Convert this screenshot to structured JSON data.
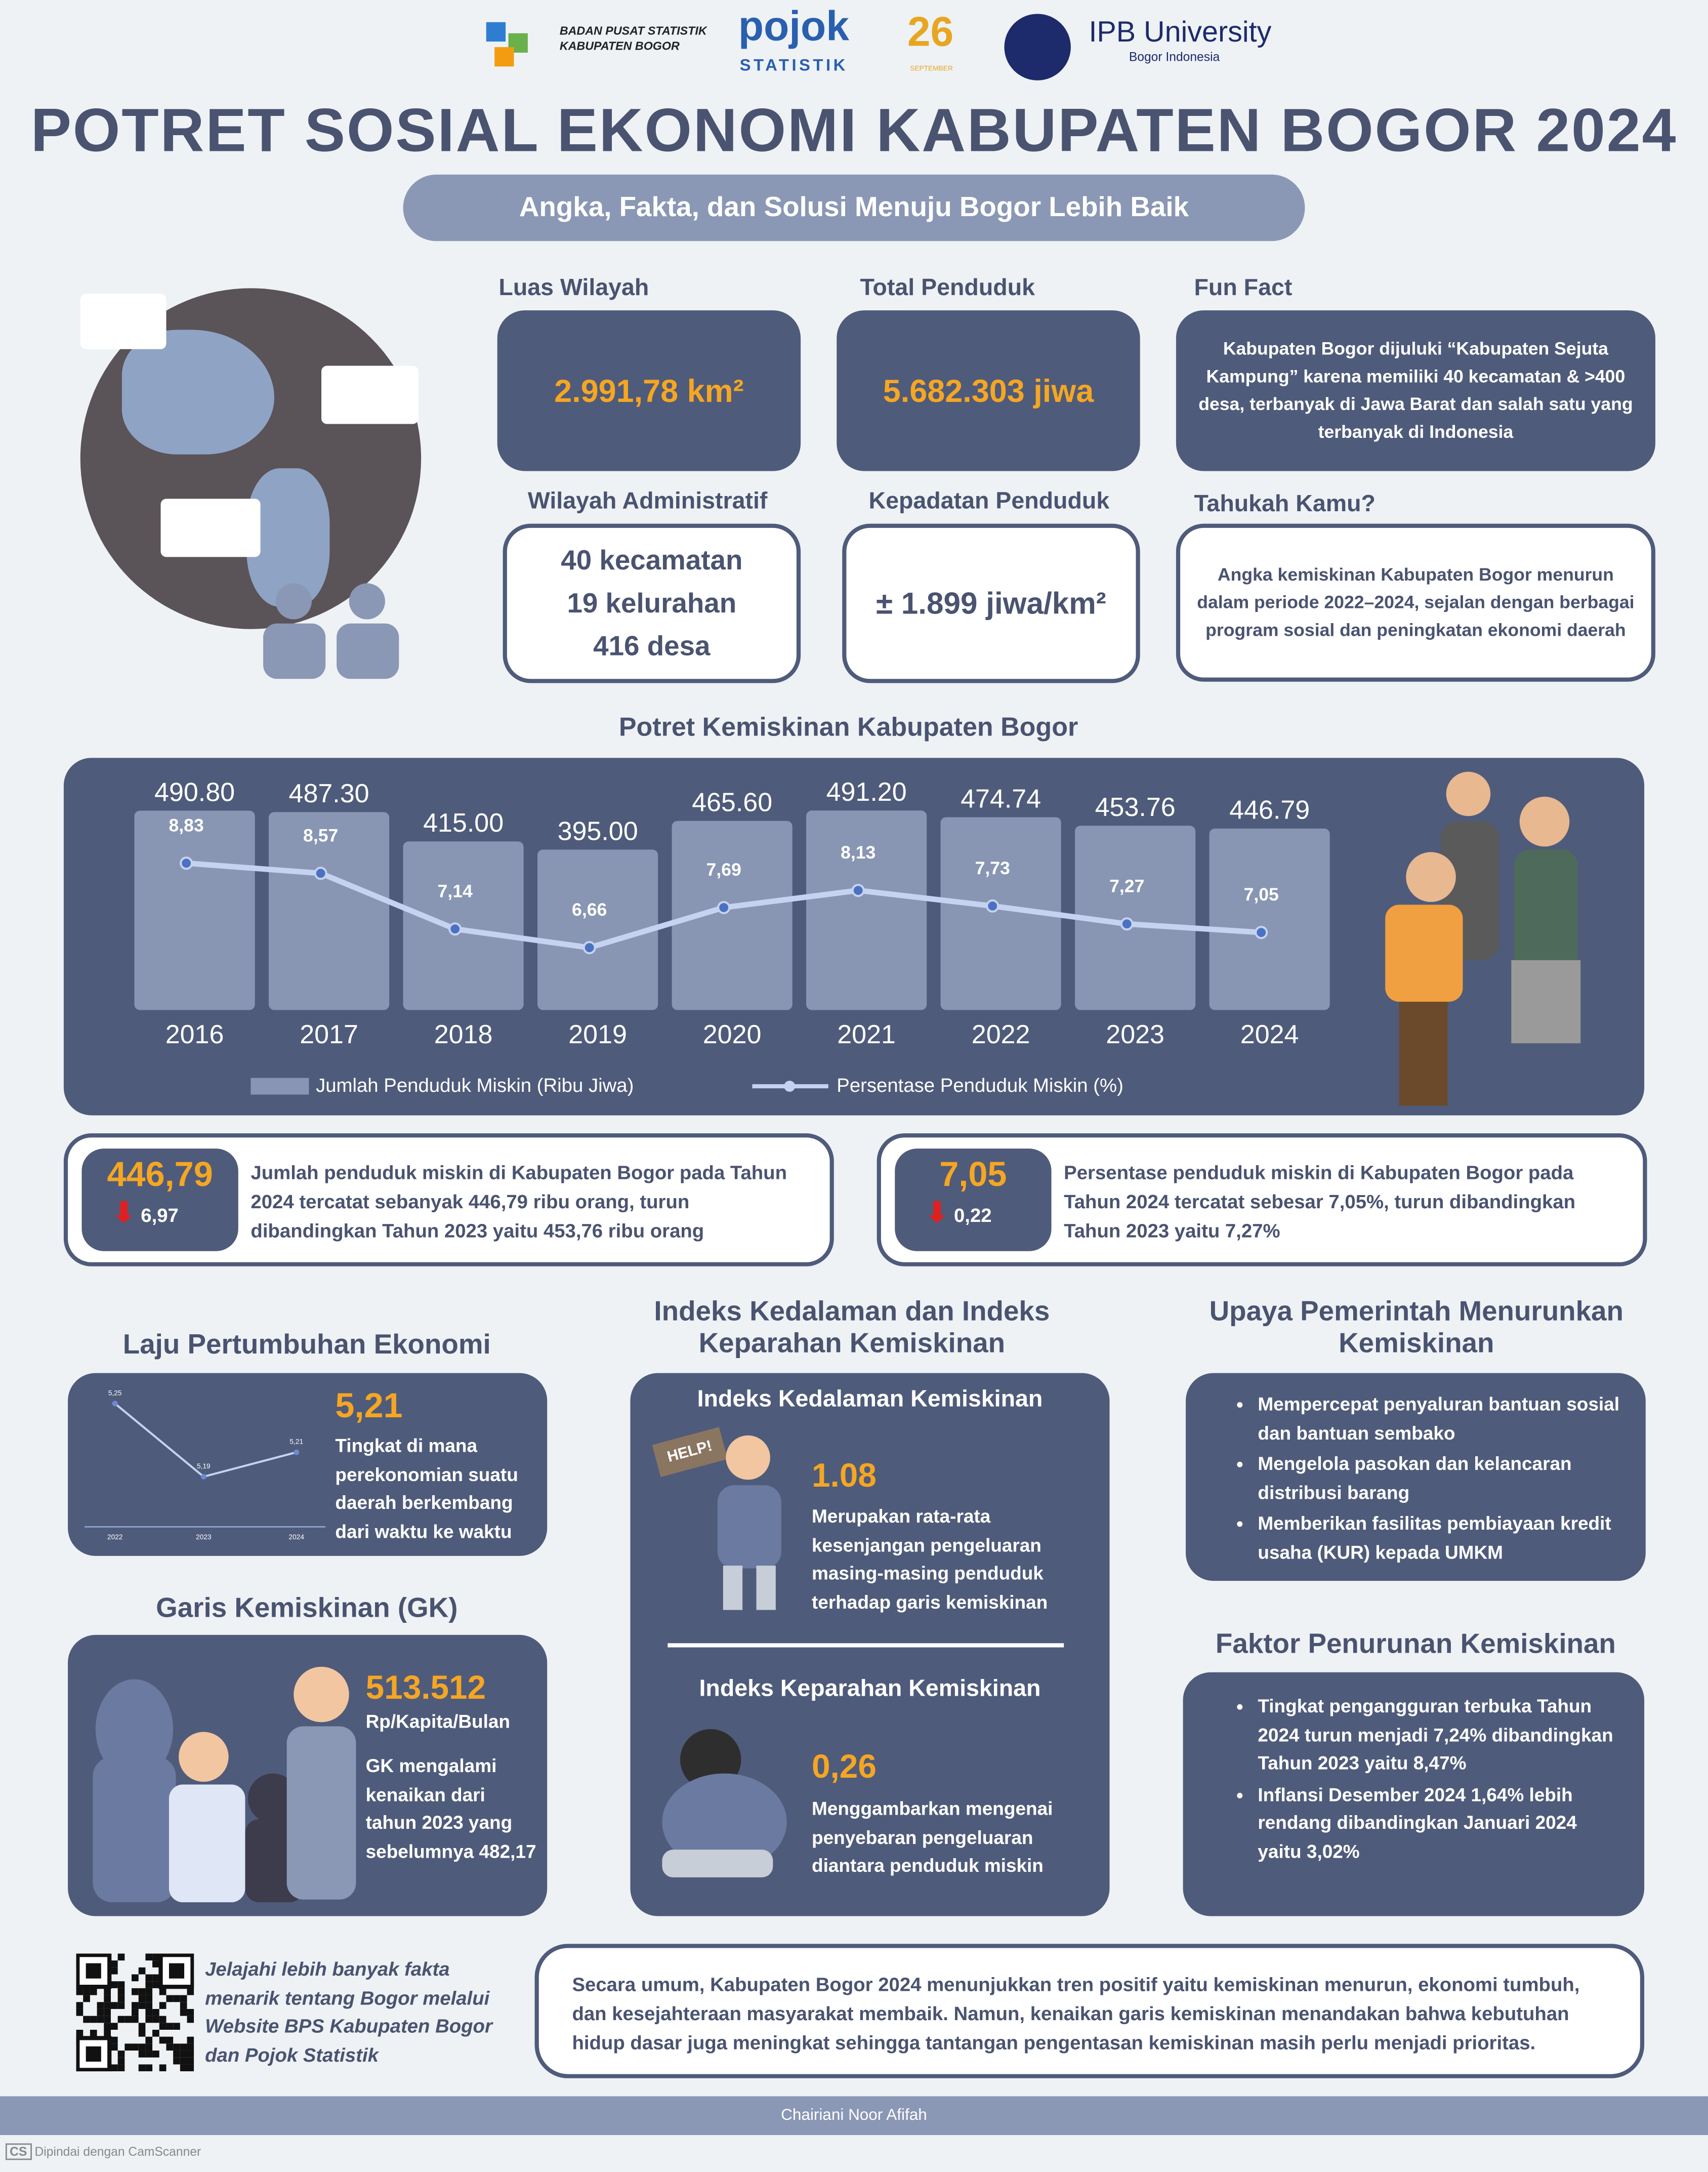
{
  "logos": {
    "bps": "BADAN PUSAT STATISTIK KABUPATEN BOGOR",
    "pojok": "pojok",
    "pojok_sub": "STATISTIK",
    "anniv": "26",
    "anniv_sub": "SEPTEMBER",
    "ipb": "IPB University",
    "ipb_sub": "Bogor Indonesia"
  },
  "title": "POTRET SOSIAL EKONOMI KABUPATEN BOGOR 2024",
  "subtitle": "Angka, Fakta, dan Solusi Menuju Bogor Lebih Baik",
  "luas": {
    "label": "Luas Wilayah",
    "value": "2.991,78 km²"
  },
  "penduduk": {
    "label": "Total Penduduk",
    "value": "5.682.303 jiwa"
  },
  "funfact": {
    "label": "Fun Fact",
    "text": "Kabupaten Bogor dijuluki “Kabupaten Sejuta Kampung” karena memiliki 40 kecamatan & >400 desa, terbanyak di Jawa Barat dan salah satu yang terbanyak di Indonesia"
  },
  "admin": {
    "label": "Wilayah Administratif",
    "lines": [
      "40 kecamatan",
      "19 kelurahan",
      "416 desa"
    ]
  },
  "kepadatan": {
    "label": "Kepadatan Penduduk",
    "value": "± 1.899 jiwa/km²"
  },
  "tahukah": {
    "label": "Tahukah Kamu?",
    "text": "Angka kemiskinan Kabupaten Bogor menurun dalam periode 2022–2024, sejalan dengan berbagai program sosial dan peningkatan ekonomi daerah"
  },
  "chart_data": [
    {
      "type": "bar+line",
      "title": "Potret Kemiskinan Kabupaten Bogor",
      "categories": [
        "2016",
        "2017",
        "2018",
        "2019",
        "2020",
        "2021",
        "2022",
        "2023",
        "2024"
      ],
      "series": [
        {
          "name": "Jumlah Penduduk Miskin (Ribu Jiwa)",
          "type": "bar",
          "values": [
            490.8,
            487.3,
            415.0,
            395.0,
            465.6,
            491.2,
            474.74,
            453.76,
            446.79
          ],
          "labels": [
            "490.80",
            "487.30",
            "415.00",
            "395.00",
            "465.60",
            "491.20",
            "474.74",
            "453.76",
            "446.79"
          ]
        },
        {
          "name": "Persentase Penduduk Miskin (%)",
          "type": "line",
          "values": [
            8.83,
            8.57,
            7.14,
            6.66,
            7.69,
            8.13,
            7.73,
            7.27,
            7.05
          ],
          "labels": [
            "8,83",
            "8,57",
            "7,14",
            "6,66",
            "7,69",
            "8,13",
            "7,73",
            "7,27",
            "7,05"
          ]
        }
      ],
      "legend": "bottom",
      "grid": false
    },
    {
      "type": "line",
      "title": "Laju Pertumbuhan Ekonomi",
      "categories": [
        "2022",
        "2023",
        "2024"
      ],
      "values": [
        5.25,
        5.19,
        5.21
      ],
      "labels": [
        "5,25",
        "5,19",
        "5,21"
      ]
    }
  ],
  "miskin_jumlah": {
    "value": "446,79",
    "delta": "6,97",
    "text": "Jumlah penduduk miskin di Kabupaten Bogor pada Tahun 2024 tercatat sebanyak 446,79 ribu orang, turun dibandingkan Tahun 2023 yaitu 453,76 ribu orang"
  },
  "miskin_persen": {
    "value": "7,05",
    "delta": "0,22",
    "text": "Persentase penduduk miskin di Kabupaten Bogor pada Tahun 2024 tercatat sebesar 7,05%, turun dibandingkan Tahun 2023 yaitu 7,27%"
  },
  "lpe": {
    "value": "5,21",
    "text": "Tingkat di mana perekonomian suatu daerah berkembang dari waktu ke waktu"
  },
  "gk": {
    "label": "Garis Kemiskinan (GK)",
    "value": "513.512",
    "unit": "Rp/Kapita/Bulan",
    "text": "GK mengalami kenaikan dari tahun 2023 yang sebelumnya 482,17"
  },
  "indeks": {
    "label": "Indeks Kedalaman dan Indeks Keparahan Kemiskinan",
    "p1_title": "Indeks Kedalaman Kemiskinan",
    "p1_value": "1.08",
    "p1_text": "Merupakan rata-rata kesenjangan pengeluaran masing-masing penduduk terhadap garis kemiskinan",
    "help": "HELP!",
    "p2_title": "Indeks Keparahan Kemiskinan",
    "p2_value": "0,26",
    "p2_text": "Menggambarkan mengenai penyebaran pengeluaran diantara penduduk miskin"
  },
  "upaya": {
    "label": "Upaya Pemerintah Menurunkan Kemiskinan",
    "items": [
      "Mempercepat penyaluran bantuan sosial dan bantuan sembako",
      "Mengelola pasokan dan kelancaran distribusi barang",
      "Memberikan fasilitas pembiayaan kredit usaha (KUR) kepada UMKM"
    ]
  },
  "faktor": {
    "label": "Faktor Penurunan Kemiskinan",
    "items": [
      "Tingkat pengangguran terbuka Tahun 2024 turun menjadi 7,24% dibandingkan Tahun 2023 yaitu 8,47%",
      "Inflansi Desember 2024 1,64% lebih rendang dibandingkan Januari 2024 yaitu 3,02%"
    ]
  },
  "qr_text": "Jelajahi lebih banyak fakta menarik tentang Bogor melalui Website BPS Kabupaten Bogor dan Pojok Statistik",
  "summary": "Secara umum, Kabupaten Bogor 2024 menunjukkan tren positif yaitu kemiskinan menurun, ekonomi tumbuh, dan kesejahteraan masyarakat membaik. Namun, kenaikan garis kemiskinan menandakan bahwa kebutuhan hidup dasar juga meningkat sehingga tantangan pengentasan kemiskinan masih perlu menjadi prioritas.",
  "footer": "Chairiani Noor Afifah",
  "scanner": "Dipindai dengan CamScanner",
  "colors": {
    "dark": "#4f5b7a",
    "accent": "#f5a623",
    "bar": "#8896b3",
    "line": "#c5d2f0",
    "down": "#e02020"
  }
}
